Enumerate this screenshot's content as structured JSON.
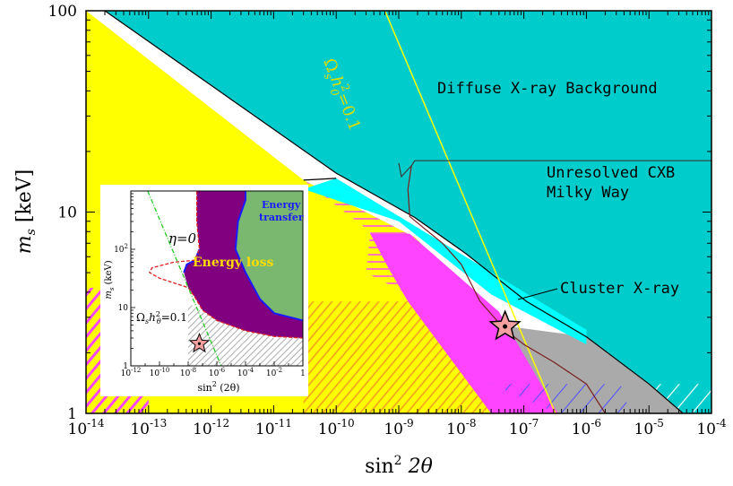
{
  "chart_data": {
    "type": "area",
    "main": {
      "x_scale": "log",
      "y_scale": "log",
      "xlim": [
        1e-14,
        0.0001
      ],
      "ylim": [
        1,
        100
      ],
      "xlabel": "sin² 2θ",
      "ylabel": "m_s [keV]",
      "x_tick_labels": [
        {
          "value": 1e-14,
          "base": "10",
          "exp": "-14"
        },
        {
          "value": 1e-13,
          "base": "10",
          "exp": "-13"
        },
        {
          "value": 1e-12,
          "base": "10",
          "exp": "-12"
        },
        {
          "value": 1e-11,
          "base": "10",
          "exp": "-11"
        },
        {
          "value": 1e-10,
          "base": "10",
          "exp": "-10"
        },
        {
          "value": 1e-09,
          "base": "10",
          "exp": "-9"
        },
        {
          "value": 1e-08,
          "base": "10",
          "exp": "-8"
        },
        {
          "value": 1e-07,
          "base": "10",
          "exp": "-7"
        },
        {
          "value": 1e-06,
          "base": "10",
          "exp": "-6"
        },
        {
          "value": 1e-05,
          "base": "10",
          "exp": "-5"
        },
        {
          "value": 0.0001,
          "base": "10",
          "exp": "-4"
        }
      ],
      "y_tick_labels": [
        {
          "value": 1,
          "label": "1"
        },
        {
          "value": 10,
          "label": "10"
        },
        {
          "value": 100,
          "label": "100"
        }
      ],
      "regions": [
        {
          "name": "yellow-region",
          "color": "#ffff00",
          "points": [
            [
              1e-14,
              100
            ],
            [
              3e-11,
              14.4
            ],
            [
              1.8e-09,
              7.5
            ],
            [
              2.7e-08,
              3.2
            ],
            [
              6e-08,
              2.7
            ],
            [
              1.1e-07,
              1
            ],
            [
              1e-14,
              1
            ]
          ]
        },
        {
          "name": "diffuse-xray-background",
          "color": "#00cccc",
          "points": [
            [
              2e-14,
              100
            ],
            [
              0.0001,
              100
            ],
            [
              0.0001,
              1
            ],
            [
              3.5e-05,
              1
            ],
            [
              1e-05,
              1.4
            ],
            [
              1e-06,
              2.4
            ],
            [
              1.1e-07,
              3.6
            ],
            [
              1.2e-08,
              6.2
            ],
            [
              1.8e-09,
              9.4
            ],
            [
              1e-10,
              15.6
            ],
            [
              2e-14,
              100
            ]
          ]
        },
        {
          "name": "grey-region",
          "color": "#aaaaaa",
          "points": [
            [
              6e-08,
              2.7
            ],
            [
              1e-06,
              2.4
            ],
            [
              1e-05,
              1.4
            ],
            [
              3.5e-05,
              1
            ],
            [
              1.1e-07,
              1
            ]
          ]
        },
        {
          "name": "magenta-region",
          "color": "#ff44ff",
          "points": [
            [
              1.5e-09,
              7.8
            ],
            [
              4e-08,
              3.2
            ],
            [
              3.5e-07,
              1
            ],
            [
              3e-08,
              1
            ],
            [
              1.4e-09,
              3.6
            ],
            [
              7e-10,
              5.2
            ],
            [
              3.5e-10,
              7.8
            ]
          ]
        }
      ],
      "bands": [
        {
          "name": "cluster-xray-band",
          "color": "#00ffff",
          "points": [
            [
              3e-11,
              13
            ],
            [
              1e-10,
              14.7
            ],
            [
              1e-06,
              2.6
            ],
            [
              1e-06,
              2.2
            ],
            [
              3e-08,
              3.9
            ],
            [
              1e-09,
              9
            ],
            [
              3e-11,
              13
            ]
          ]
        }
      ],
      "lines": [
        {
          "name": "dm-abundance-line",
          "label": "Ω_s h_0² = 0.1",
          "color": "#ffff00",
          "points": [
            [
              6e-10,
              100
            ],
            [
              3.2e-07,
              1
            ]
          ]
        },
        {
          "name": "unresolved-cxb-line",
          "color": "#3a3a3a",
          "points": [
            [
              1e-09,
              17.5
            ],
            [
              1.1e-09,
              15
            ],
            [
              1.6e-09,
              17
            ],
            [
              1.8e-09,
              18
            ],
            [
              0.0001,
              18
            ]
          ]
        },
        {
          "name": "milky-way-line",
          "color": "#7a1f1f",
          "points": [
            [
              1.6e-09,
              17
            ],
            [
              1.4e-09,
              13
            ],
            [
              1.5e-09,
              9.5
            ],
            [
              5e-09,
              7
            ],
            [
              1e-08,
              5.5
            ],
            [
              2e-08,
              3.6
            ],
            [
              5e-08,
              2.6
            ],
            [
              1e-07,
              2.2
            ],
            [
              3e-07,
              1.8
            ],
            [
              1e-06,
              1.4
            ],
            [
              2e-06,
              1
            ]
          ]
        }
      ],
      "star": {
        "x": 5e-08,
        "y": 2.7
      },
      "annotations": [
        {
          "name": "label-diffuse-xray",
          "text": "Diffuse X-ray Background"
        },
        {
          "name": "label-unresolved-cxb",
          "text": "Unresolved CXB"
        },
        {
          "name": "label-milky-way",
          "text": "Milky Way"
        },
        {
          "name": "label-cluster-xray",
          "text": "Cluster X-ray"
        },
        {
          "name": "label-omega-main",
          "text": "Ω"
        }
      ],
      "omega_label": {
        "omega": "Ω",
        "s": "s",
        "h": "h",
        "sub0": "0",
        "sup2": "2",
        "value": "=0.1"
      }
    },
    "inset": {
      "x_scale": "log",
      "y_scale": "log",
      "xlim": [
        1e-12,
        1
      ],
      "ylim": [
        1,
        1000
      ],
      "xlabel": "sin² (2θ)",
      "ylabel": "m_s (keV)",
      "x_tick_labels": [
        {
          "value": 1e-12,
          "base": "10",
          "exp": "-12"
        },
        {
          "value": 1e-10,
          "base": "10",
          "exp": "-10"
        },
        {
          "value": 1e-08,
          "base": "10",
          "exp": "-8"
        },
        {
          "value": 1e-06,
          "base": "10",
          "exp": "-6"
        },
        {
          "value": 0.0001,
          "base": "10",
          "exp": "-4"
        },
        {
          "value": 0.01,
          "base": "10",
          "exp": "-2"
        },
        {
          "value": 1,
          "base": "1",
          "exp": ""
        }
      ],
      "y_tick_labels": [
        {
          "value": 1,
          "label": "1"
        },
        {
          "value": 10,
          "label": "10"
        },
        {
          "value": 100,
          "label": "10",
          "exp": "2"
        },
        {
          "value": 1000,
          "label": "10",
          "exp": "3"
        }
      ],
      "labels": {
        "eta": "η=0",
        "energy_loss": "Energy loss",
        "energy_transfer_1": "Energy",
        "energy_transfer_2": "transfer",
        "omega": "Ω_s h_θ² = 0.1"
      },
      "colors": {
        "purple": "#800080",
        "green": "#7bb86f",
        "blue": "#1a1aff",
        "red_dashed": "#dd2222",
        "green_dashdot": "#22cc22"
      }
    }
  }
}
